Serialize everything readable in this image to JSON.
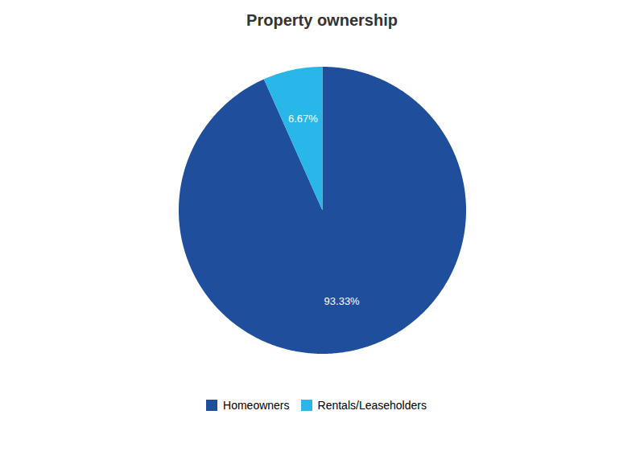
{
  "chart_data": {
    "type": "pie",
    "title": "Property ownership",
    "categories": [
      "Homeowners",
      "Rentals/Leaseholders"
    ],
    "values": [
      93.33,
      6.67
    ],
    "value_labels": [
      "93.33%",
      "6.67%"
    ],
    "colors": [
      "#1f4e9c",
      "#29b6e8"
    ],
    "data_labels": true,
    "legend": "bottom"
  }
}
